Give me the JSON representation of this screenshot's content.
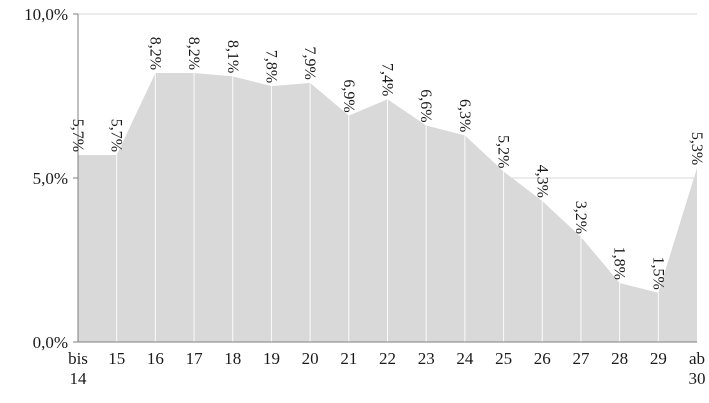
{
  "chart_data": {
    "type": "area",
    "categories": [
      [
        "bis",
        "14"
      ],
      [
        "15"
      ],
      [
        "16"
      ],
      [
        "17"
      ],
      [
        "18"
      ],
      [
        "19"
      ],
      [
        "20"
      ],
      [
        "21"
      ],
      [
        "22"
      ],
      [
        "23"
      ],
      [
        "24"
      ],
      [
        "25"
      ],
      [
        "26"
      ],
      [
        "27"
      ],
      [
        "28"
      ],
      [
        "29"
      ],
      [
        "ab",
        "30"
      ]
    ],
    "values": [
      5.7,
      5.7,
      8.2,
      8.2,
      8.1,
      7.8,
      7.9,
      6.9,
      7.4,
      6.6,
      6.3,
      5.2,
      4.3,
      3.2,
      1.8,
      1.5,
      5.3
    ],
    "data_labels": [
      "5,7%",
      "5,7%",
      "8,2%",
      "8,2%",
      "8,1%",
      "7,8%",
      "7,9%",
      "6,9%",
      "7,4%",
      "6,6%",
      "6,3%",
      "5,2%",
      "4,3%",
      "3,2%",
      "1,8%",
      "1,5%",
      "5,3%"
    ],
    "y_ticks": [
      0,
      5,
      10
    ],
    "y_tick_labels": [
      "0,0%",
      "5,0%",
      "10,0%"
    ],
    "ylim": [
      0,
      10
    ],
    "title": "",
    "xlabel": "",
    "ylabel": "",
    "grid": true,
    "legend": "none",
    "colors": {
      "area": "#d9d9d9",
      "grid": "#d9d9d9",
      "axis": "#7f7f7f",
      "text": "#1a1a1a"
    }
  }
}
